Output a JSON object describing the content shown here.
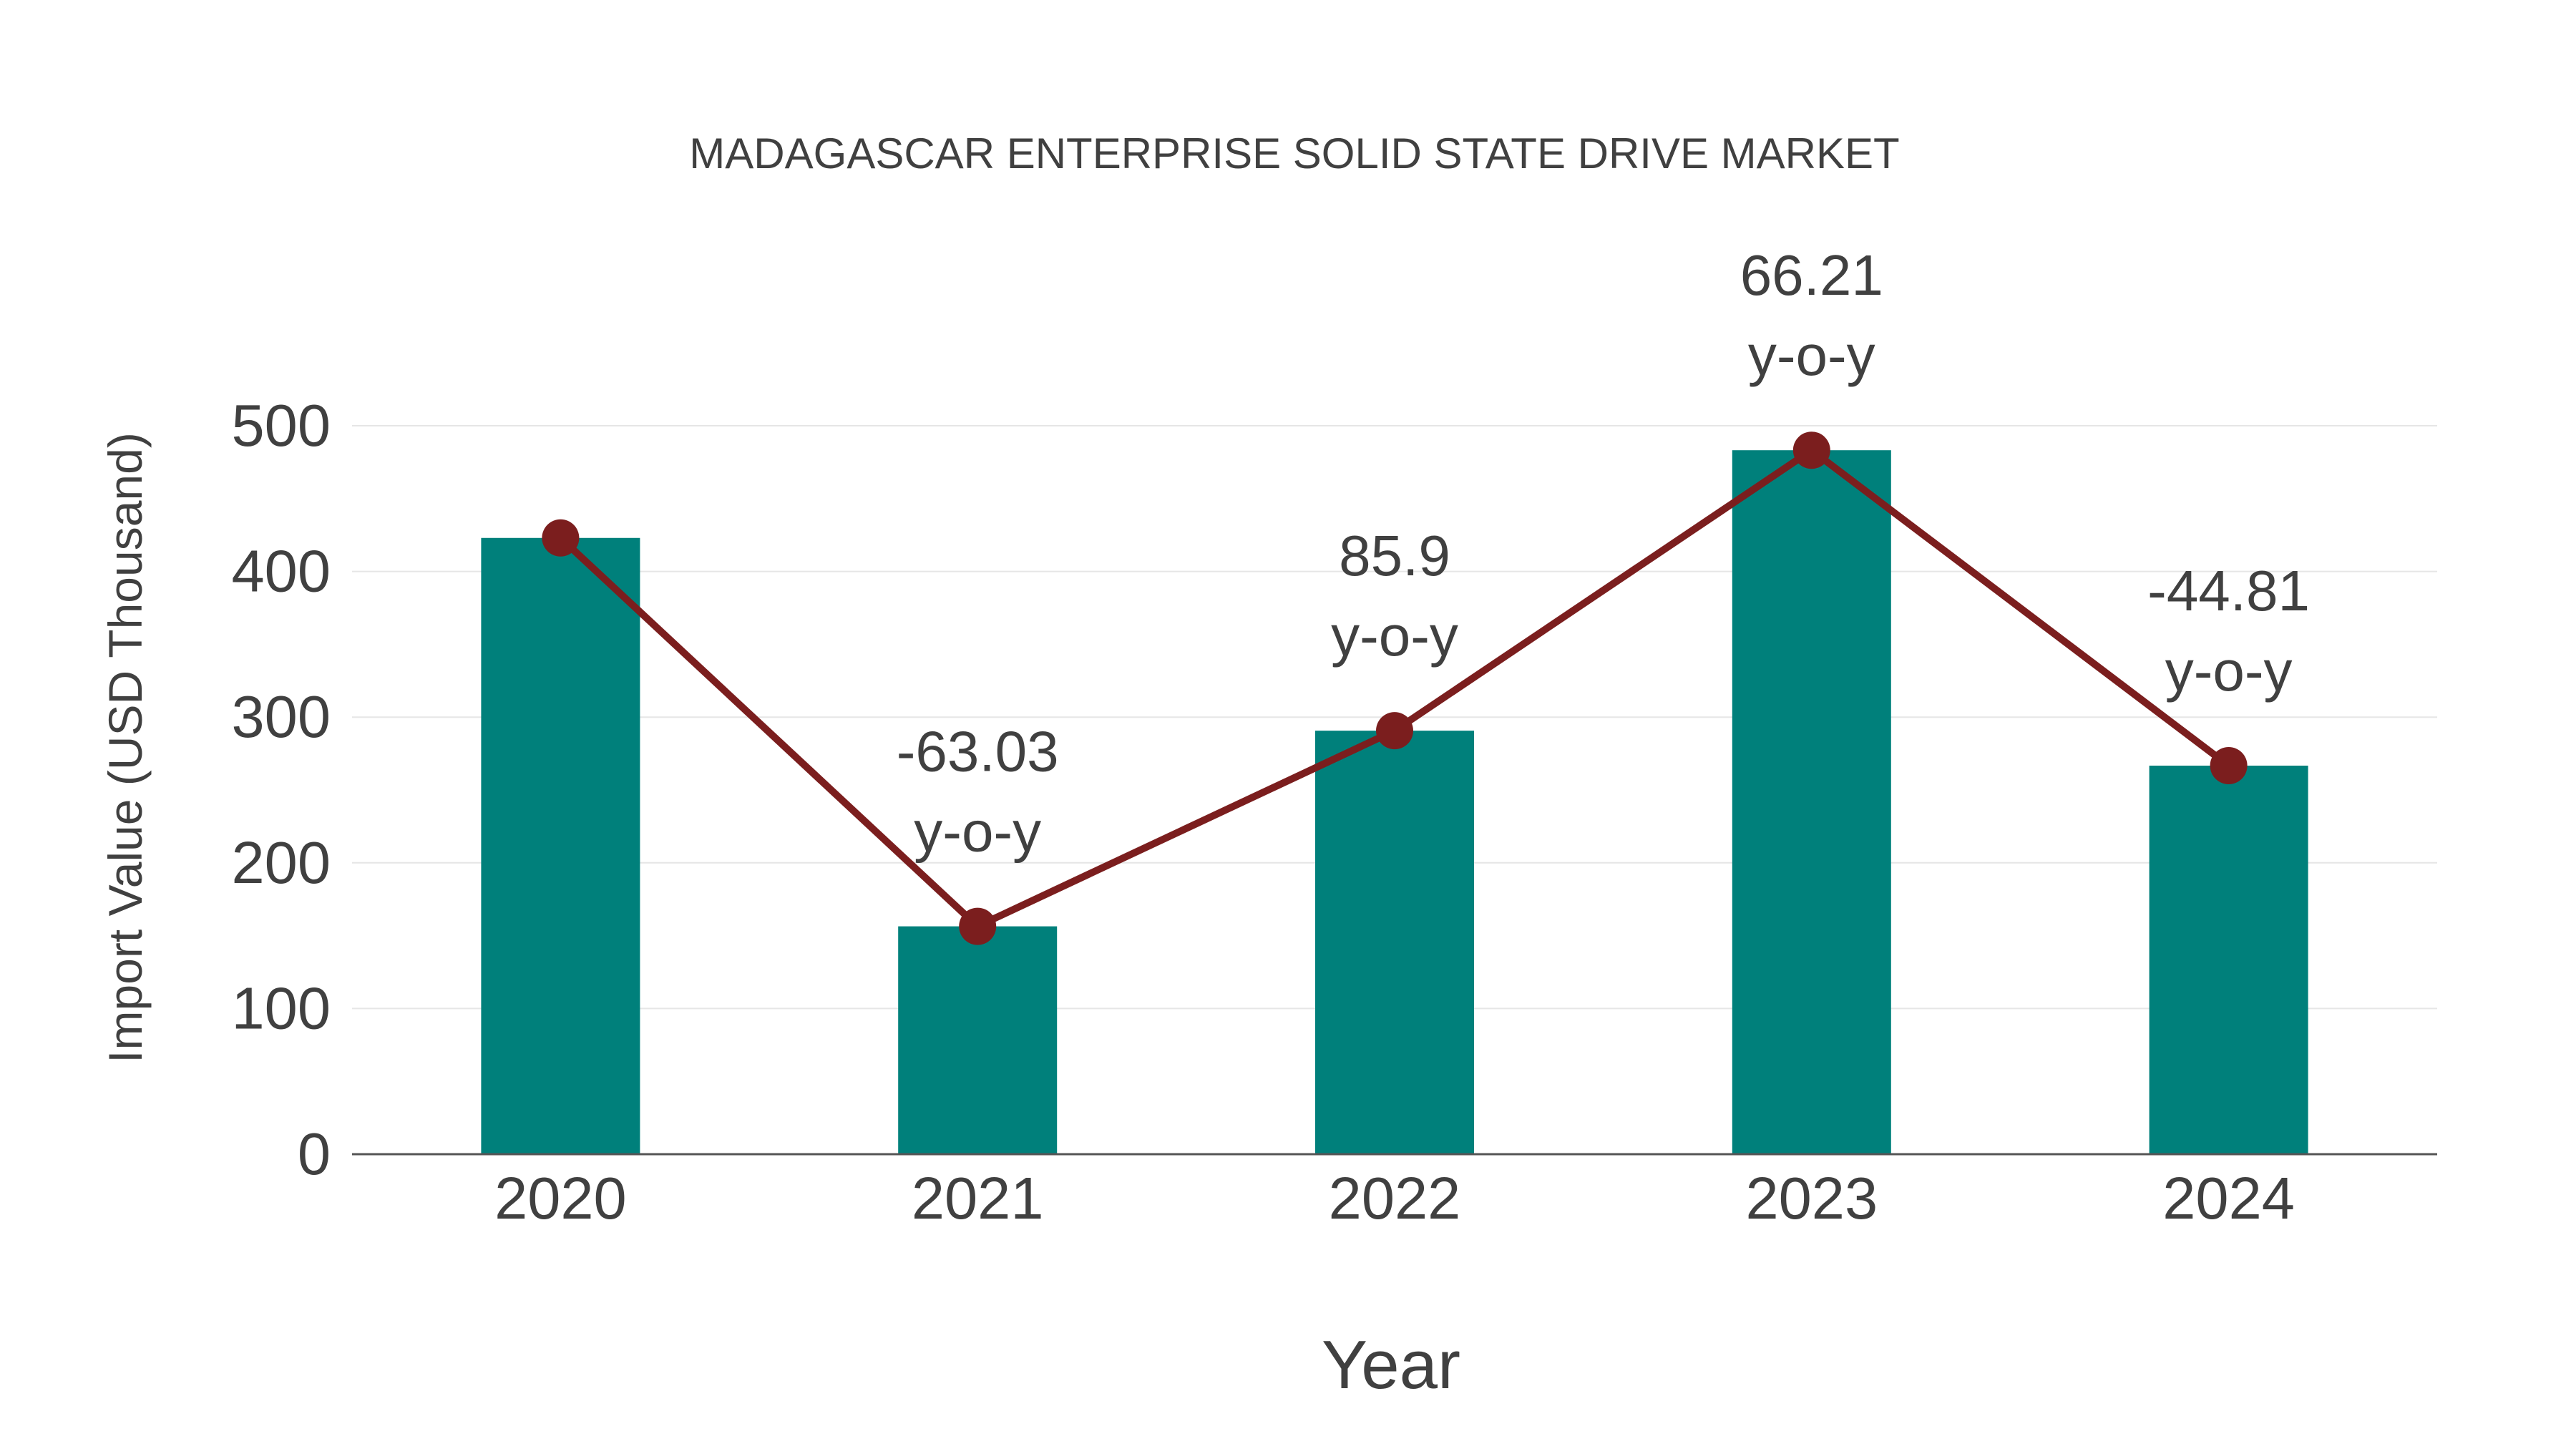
{
  "chart_data": {
    "type": "bar+line",
    "title": "MADAGASCAR ENTERPRISE SOLID STATE DRIVE MARKET",
    "xlabel": "Year",
    "ylabel": "Import Value (USD Thousand)",
    "ylim": [
      0,
      500
    ],
    "yticks": [
      0,
      100,
      200,
      300,
      400,
      500
    ],
    "grid": true,
    "categories": [
      "2020",
      "2021",
      "2022",
      "2023",
      "2024"
    ],
    "values": [
      423,
      156.4,
      290.7,
      483.2,
      266.7
    ],
    "yoy_labels": [
      "",
      "-63.03",
      "85.9",
      "66.21",
      "-44.81"
    ],
    "yoy_suffix": "y-o-y",
    "colors": {
      "bar": "#00807b",
      "line": "#7b1e1e",
      "grid": "#e6e6e6",
      "axis": "#555555"
    }
  }
}
